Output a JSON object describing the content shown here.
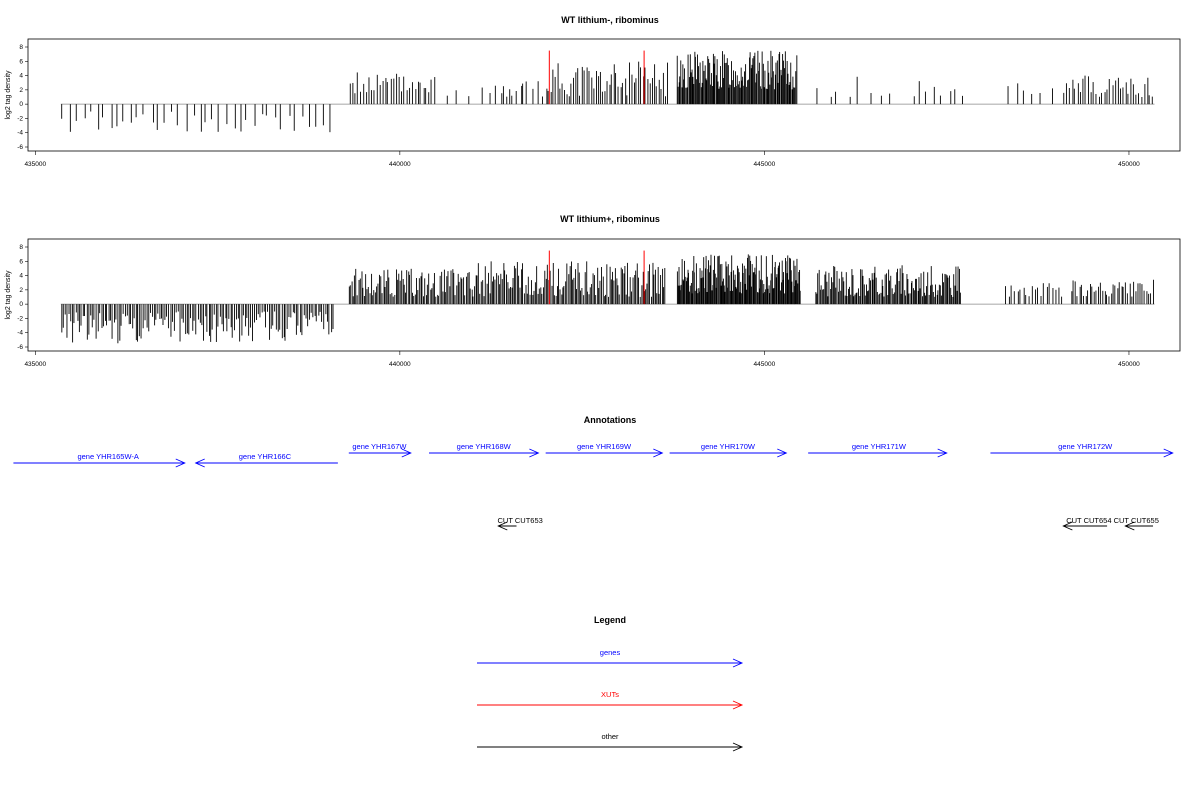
{
  "chart_data": [
    {
      "type": "bar",
      "title": "WT lithium-, ribominus",
      "ylabel": "log2 tag density",
      "xlim": [
        434900,
        450700
      ],
      "ylim": [
        -6,
        8
      ],
      "xticks": [
        "435000",
        "440000",
        "445000",
        "450000"
      ],
      "yticks": [
        "8",
        "6",
        "4",
        "2",
        "0",
        "-2",
        "-4",
        "-6"
      ],
      "segments": [
        {
          "from": 435350,
          "to": 439100,
          "bars": 40,
          "min": -4,
          "max": -1,
          "seed": 3
        },
        {
          "from": 439300,
          "to": 440500,
          "bars": 32,
          "min": 1.5,
          "max": 4.5,
          "seed": 5
        },
        {
          "from": 440600,
          "to": 441800,
          "bars": 8,
          "min": 1,
          "max": 3.5,
          "seed": 7
        },
        {
          "from": 441300,
          "to": 442000,
          "bars": 10,
          "min": 0.8,
          "max": 3.5,
          "seed": 9
        },
        {
          "from": 442000,
          "to": 443700,
          "bars": 55,
          "min": 1,
          "max": 6,
          "seed": 11
        },
        {
          "from": 443800,
          "to": 445450,
          "bars": 130,
          "min": 2,
          "max": 7.5,
          "seed": 13
        },
        {
          "from": 445700,
          "to": 446800,
          "bars": 8,
          "min": 1,
          "max": 4,
          "seed": 15
        },
        {
          "from": 447000,
          "to": 447800,
          "bars": 8,
          "min": 1,
          "max": 3.5,
          "seed": 17
        },
        {
          "from": 448300,
          "to": 449000,
          "bars": 6,
          "min": 1,
          "max": 3.5,
          "seed": 19
        },
        {
          "from": 449100,
          "to": 450350,
          "bars": 34,
          "min": 1,
          "max": 4,
          "seed": 21
        }
      ],
      "xut_markers": [
        442050,
        443350
      ]
    },
    {
      "type": "bar",
      "title": "WT lithium+, ribominus",
      "ylabel": "log2 tag density",
      "xlim": [
        434900,
        450700
      ],
      "ylim": [
        -6,
        8
      ],
      "xticks": [
        "435000",
        "440000",
        "445000",
        "450000"
      ],
      "yticks": [
        "8",
        "6",
        "4",
        "2",
        "0",
        "-2",
        "-4",
        "-6"
      ],
      "segments": [
        {
          "from": 435350,
          "to": 439100,
          "bars": 150,
          "min": -5.5,
          "max": -1,
          "seed": 23
        },
        {
          "from": 439300,
          "to": 441000,
          "bars": 90,
          "min": 1,
          "max": 5,
          "seed": 25
        },
        {
          "from": 441000,
          "to": 443650,
          "bars": 140,
          "min": 1,
          "max": 6,
          "seed": 27
        },
        {
          "from": 443800,
          "to": 445500,
          "bars": 150,
          "min": 1.5,
          "max": 7,
          "seed": 29
        },
        {
          "from": 445700,
          "to": 447700,
          "bars": 130,
          "min": 1,
          "max": 5.5,
          "seed": 31
        },
        {
          "from": 448300,
          "to": 449100,
          "bars": 20,
          "min": 1,
          "max": 3,
          "seed": 33
        },
        {
          "from": 449200,
          "to": 450350,
          "bars": 40,
          "min": 1,
          "max": 3.5,
          "seed": 35
        }
      ],
      "xut_markers": [
        442050,
        443350
      ]
    }
  ],
  "annotations": {
    "title": "Annotations",
    "genes": [
      {
        "label": "gene YHR165W-A",
        "from": 435100,
        "to": 437050,
        "dir": "right",
        "row": 2,
        "label_at": 436000
      },
      {
        "label": "gene YHR165W-A",
        "from": 437000,
        "to": 434700,
        "dir": "none",
        "row": 2,
        "label_at": null
      },
      {
        "label": "gene YHR166C",
        "from": 437200,
        "to": 439150,
        "dir": "left",
        "row": 2,
        "label_at": 438150
      },
      {
        "label": "gene YHR167W",
        "from": 439300,
        "to": 440150,
        "dir": "right",
        "row": 1,
        "label_at": 439720
      },
      {
        "label": "gene YHR168W",
        "from": 440400,
        "to": 441900,
        "dir": "right",
        "row": 1,
        "label_at": 441150
      },
      {
        "label": "gene YHR169W",
        "from": 442000,
        "to": 443600,
        "dir": "right",
        "row": 1,
        "label_at": 442800
      },
      {
        "label": "gene YHR170W",
        "from": 443700,
        "to": 445300,
        "dir": "right",
        "row": 1,
        "label_at": 444500
      },
      {
        "label": "gene YHR171W",
        "from": 445600,
        "to": 447500,
        "dir": "right",
        "row": 1,
        "label_at": 446570
      },
      {
        "label": "gene YHR172W",
        "from": 448100,
        "to": 450600,
        "dir": "right",
        "row": 1,
        "label_at": 449400
      }
    ],
    "other": [
      {
        "label": "CUT CUT653",
        "from": 441600,
        "to": 441350,
        "dir": "left",
        "label_at": 441650
      },
      {
        "label": "CUT CUT654",
        "from": 449700,
        "to": 449100,
        "dir": "left",
        "label_at": 449450
      },
      {
        "label": "CUT CUT655",
        "from": 450330,
        "to": 449950,
        "dir": "left",
        "label_at": 450100
      }
    ]
  },
  "legend": {
    "title": "Legend",
    "items": [
      {
        "label": "genes",
        "color": "#0000ff"
      },
      {
        "label": "XUTs",
        "color": "#ff0000"
      },
      {
        "label": "other",
        "color": "#000000"
      }
    ]
  }
}
